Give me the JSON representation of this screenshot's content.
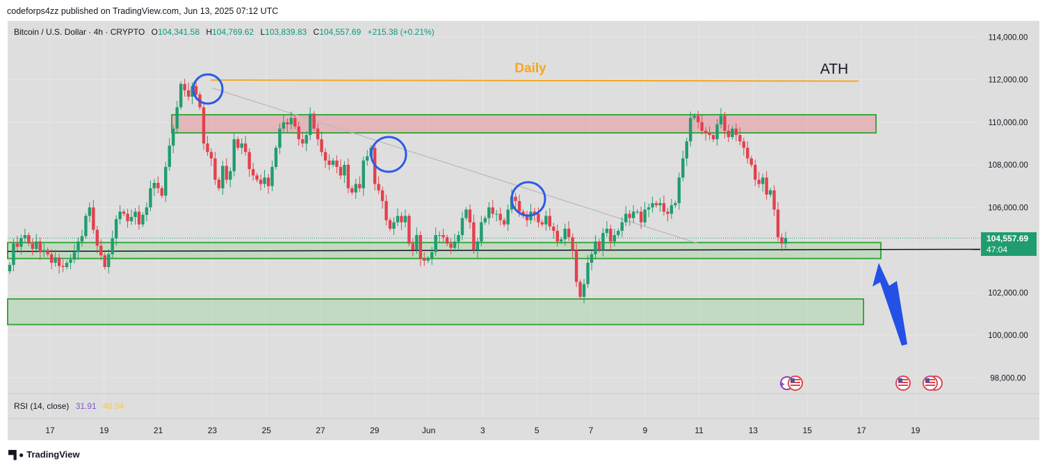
{
  "published": "codeforps4zz published on TradingView.com, Jun 13, 2025 07:12 UTC",
  "header": {
    "symbol": "Bitcoin / U.S. Dollar · 4h · CRYPTO",
    "o_label": "O",
    "o": "104,341.58",
    "h_label": "H",
    "h": "104,769.62",
    "l_label": "L",
    "l": "103,839.83",
    "c_label": "C",
    "c": "104,557.69",
    "change": "+215.38 (+0.21%)"
  },
  "price_tag": {
    "price": "104,557.69",
    "countdown": "47:04"
  },
  "rsi": {
    "label": "RSI (14, close)",
    "value1": "31.91",
    "value2": "48.94"
  },
  "annotations": {
    "daily": "Daily",
    "ath": "ATH"
  },
  "brand": "TradingView",
  "colors": {
    "up": "#1f9d6e",
    "down": "#e2414d",
    "zone_green": "#3aa73a",
    "zone_red": "#e8a5ab",
    "ath_line": "#f5a623",
    "circle": "#2b59e8",
    "arrow": "#2351e6"
  },
  "chart_data": {
    "type": "candlestick",
    "title": "Bitcoin / U.S. Dollar · 4h · CRYPTO",
    "y_ticks": [
      114000,
      112000,
      110000,
      108000,
      106000,
      104000,
      102000,
      100000,
      98000
    ],
    "y_tick_labels": [
      "114,000.00",
      "112,000.00",
      "110,000.00",
      "108,000.00",
      "106,000.00",
      "",
      "102,000.00",
      "100,000.00",
      "98,000.00"
    ],
    "x_tick_labels": [
      "17",
      "19",
      "21",
      "23",
      "25",
      "27",
      "29",
      "Jun",
      "3",
      "5",
      "7",
      "9",
      "11",
      "13",
      "15",
      "17",
      "19"
    ],
    "ylim": [
      97500,
      115000
    ],
    "last_price": 104557.69,
    "ath_level": 111980,
    "zones": [
      {
        "name": "resistance",
        "low": 109500,
        "high": 110350,
        "color": "red"
      },
      {
        "name": "support-1",
        "low": 103600,
        "high": 104350,
        "color": "green"
      },
      {
        "name": "support-2",
        "low": 100500,
        "high": 101700,
        "color": "green"
      }
    ],
    "horizontal_line": 104000,
    "trendline": [
      [
        112000,
        22.8
      ],
      [
        104300,
        9.5
      ]
    ],
    "closes": [
      103300,
      104300,
      104150,
      104550,
      104700,
      104300,
      104050,
      104400,
      103900,
      104000,
      103800,
      103400,
      103650,
      103250,
      103200,
      103400,
      103550,
      103900,
      104400,
      104650,
      105600,
      106000,
      104950,
      104200,
      103750,
      103200,
      103800,
      104550,
      105450,
      105800,
      105700,
      105350,
      105550,
      105800,
      105200,
      105650,
      106000,
      106900,
      107150,
      106900,
      106550,
      107900,
      108900,
      109700,
      110700,
      111800,
      111500,
      111200,
      111700,
      111300,
      110700,
      109000,
      108600,
      108300,
      107300,
      106900,
      107950,
      107300,
      107700,
      109200,
      108800,
      109000,
      108600,
      107800,
      107500,
      107300,
      107100,
      107400,
      107000,
      107900,
      108800,
      109700,
      110000,
      109900,
      110200,
      109800,
      109200,
      109000,
      109400,
      110400,
      109700,
      109200,
      108600,
      108200,
      108000,
      108200,
      107900,
      107500,
      108000,
      106900,
      106700,
      107100,
      106900,
      108200,
      108400,
      108800,
      107100,
      106800,
      106300,
      105400,
      105000,
      105300,
      105600,
      105300,
      105600,
      104300,
      104000,
      104700,
      103600,
      103500,
      103600,
      103900,
      104700,
      104700,
      104600,
      104300,
      104100,
      104400,
      104700,
      105500,
      105900,
      105300,
      104000,
      104400,
      105300,
      105500,
      106000,
      105700,
      105700,
      105400,
      105200,
      105900,
      106500,
      106300,
      105800,
      105600,
      105400,
      105800,
      105700,
      105300,
      105200,
      105600,
      105100,
      104900,
      104400,
      104500,
      105000,
      104600,
      104000,
      102500,
      101800,
      102400,
      103400,
      103800,
      104400,
      104000,
      104800,
      105000,
      104400,
      104700,
      104900,
      105300,
      105700,
      105500,
      105800,
      105800,
      105300,
      105900,
      106000,
      106200,
      106100,
      106200,
      105800,
      105700,
      106100,
      106200,
      107400,
      108300,
      109100,
      110200,
      110300,
      110000,
      109600,
      109500,
      109400,
      109200,
      109900,
      110300,
      109600,
      109300,
      109700,
      109400,
      109100,
      108800,
      108300,
      108000,
      107300,
      107100,
      107400,
      106600,
      106800,
      105900,
      104600,
      104300,
      104557.69
    ]
  }
}
